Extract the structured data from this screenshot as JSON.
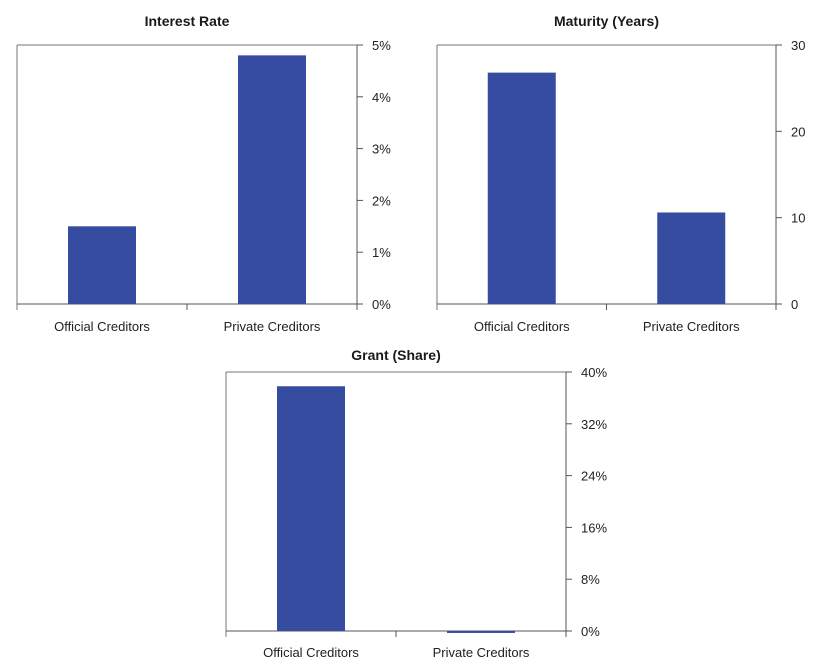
{
  "chart_data": [
    {
      "type": "bar",
      "title": "Interest Rate",
      "categories": [
        "Official Creditors",
        "Private Creditors"
      ],
      "values": [
        1.5,
        4.8
      ],
      "unit": "%",
      "ylim": [
        0,
        5
      ],
      "yticks": [
        "0%",
        "1%",
        "2%",
        "3%",
        "4%",
        "5%"
      ],
      "ytick_values": [
        0,
        1,
        2,
        3,
        4,
        5
      ],
      "y_axis_side": "right",
      "grid": false,
      "color": "#354ca1"
    },
    {
      "type": "bar",
      "title": "Maturity (Years)",
      "categories": [
        "Official Creditors",
        "Private Creditors"
      ],
      "values": [
        26.8,
        10.6
      ],
      "ylim": [
        0,
        30
      ],
      "yticks": [
        "0",
        "10",
        "20",
        "30"
      ],
      "ytick_values": [
        0,
        10,
        20,
        30
      ],
      "y_axis_side": "right",
      "grid": false,
      "color": "#354ca1"
    },
    {
      "type": "bar",
      "title": "Grant (Share)",
      "categories": [
        "Official Creditors",
        "Private Creditors"
      ],
      "values": [
        37.8,
        -0.3
      ],
      "unit": "%",
      "ylim": [
        0,
        40
      ],
      "yticks": [
        "0%",
        "8%",
        "16%",
        "24%",
        "32%",
        "40%"
      ],
      "ytick_values": [
        0,
        8,
        16,
        24,
        32,
        40
      ],
      "y_axis_side": "right",
      "grid": false,
      "color": "#354ca1"
    }
  ]
}
